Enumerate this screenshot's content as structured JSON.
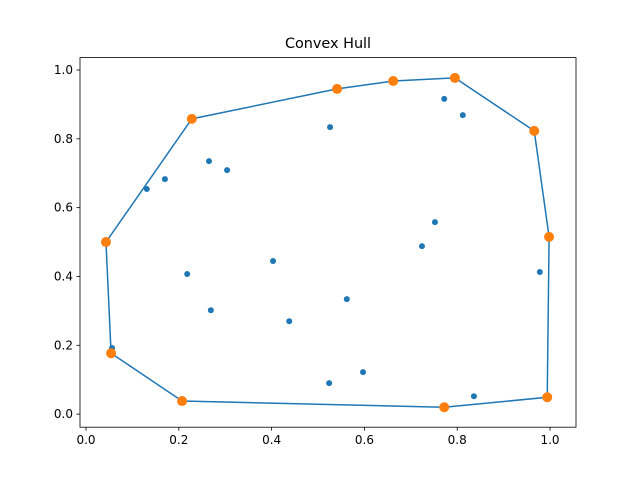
{
  "chart_data": {
    "type": "scatter",
    "title": "Convex Hull",
    "xlim": [
      -0.013,
      1.056
    ],
    "ylim": [
      -0.038,
      1.036
    ],
    "xticks": [
      {
        "value": 0,
        "label": "0.0"
      },
      0.2,
      0.4,
      0.6,
      0.8,
      {
        "value": 1,
        "label": "1.0"
      }
    ],
    "yticks": [
      {
        "value": 0,
        "label": "0.0"
      },
      0.2,
      0.4,
      0.6,
      0.8,
      {
        "value": 1,
        "label": "1.0"
      }
    ],
    "series": [
      {
        "color": "#1f77b4",
        "x": [
          0.772,
          0.812,
          0.526,
          0.265,
          0.304,
          0.17,
          0.131,
          0.752,
          0.724,
          0.403,
          0.218,
          0.978,
          0.562,
          0.269,
          0.438,
          0.056,
          0.597,
          0.524,
          0.836
        ],
        "values": [
          0.916,
          0.869,
          0.834,
          0.735,
          0.709,
          0.683,
          0.654,
          0.558,
          0.488,
          0.445,
          0.407,
          0.413,
          0.334,
          0.302,
          0.27,
          0.192,
          0.122,
          0.09,
          0.052
        ]
      },
      {
        "color": "#ff7f0e",
        "line_color": "#1f77b4",
        "closed_line": true,
        "x": [
          0.043,
          0.228,
          0.541,
          0.662,
          0.795,
          0.966,
          0.998,
          0.994,
          0.772,
          0.207,
          0.054
        ],
        "values": [
          0.5,
          0.858,
          0.945,
          0.968,
          0.977,
          0.823,
          0.515,
          0.049,
          0.02,
          0.038,
          0.177
        ]
      }
    ]
  }
}
